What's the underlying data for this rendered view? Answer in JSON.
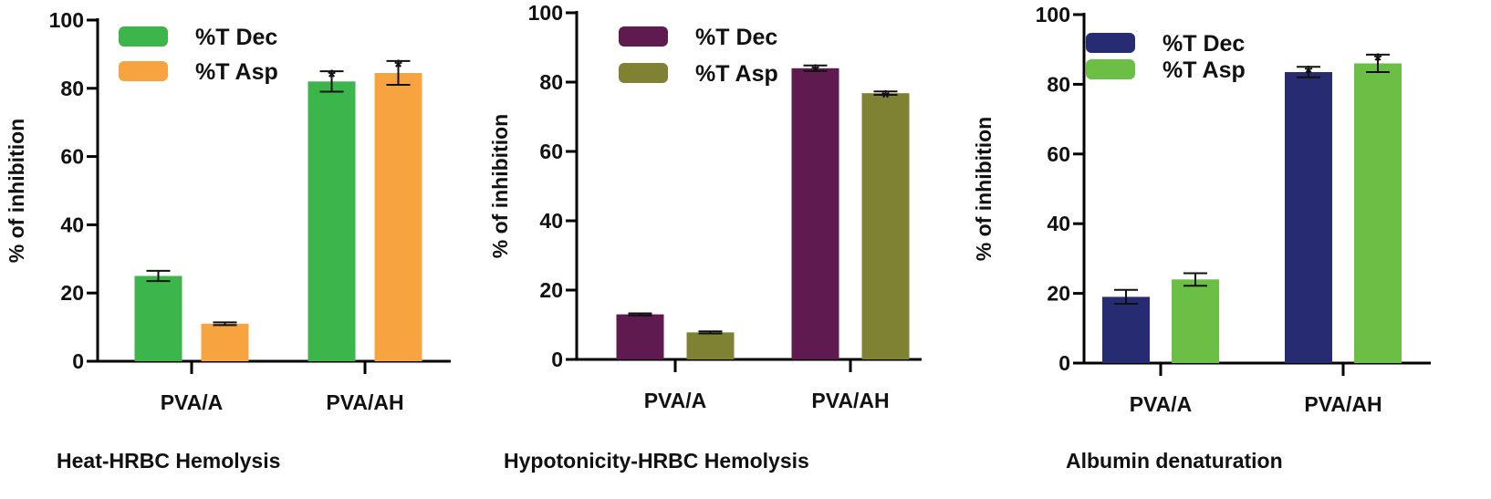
{
  "chart_data": [
    {
      "type": "bar",
      "caption": "Heat-HRBC Hemolysis",
      "ylabel": "% of inhibition",
      "ylim": [
        0,
        100
      ],
      "yticks": [
        "0",
        "20",
        "40",
        "60",
        "80",
        "100"
      ],
      "categories": [
        "PVA/A",
        "PVA/AH"
      ],
      "legend_position": "top-left",
      "series": [
        {
          "name": "%T Dec",
          "color": "#3cb54a",
          "values": [
            25,
            82
          ],
          "errors": [
            1.5,
            3
          ],
          "significance": [
            "",
            "*"
          ]
        },
        {
          "name": "%T Asp",
          "color": "#f7a440",
          "values": [
            11,
            84.5
          ],
          "errors": [
            0.4,
            3.5
          ],
          "significance": [
            "",
            "*"
          ]
        }
      ]
    },
    {
      "type": "bar",
      "caption": "Hypotonicity-HRBC Hemolysis",
      "ylabel": "% of inhibition",
      "ylim": [
        0,
        100
      ],
      "yticks": [
        "0",
        "20",
        "40",
        "60",
        "80",
        "100"
      ],
      "categories": [
        "PVA/A",
        "PVA/AH"
      ],
      "legend_position": "top-left",
      "series": [
        {
          "name": "%T Dec",
          "color": "#5f1a4f",
          "values": [
            13,
            84
          ],
          "errors": [
            0.3,
            0.8
          ],
          "significance": [
            "",
            "*"
          ]
        },
        {
          "name": "%T Asp",
          "color": "#7e8232",
          "values": [
            7.8,
            76.8
          ],
          "errors": [
            0.3,
            0.5
          ],
          "significance": [
            "",
            "*"
          ]
        }
      ]
    },
    {
      "type": "bar",
      "caption": "Albumin denaturation",
      "ylabel": "% of inhibition",
      "ylim": [
        0,
        100
      ],
      "yticks": [
        "0",
        "20",
        "40",
        "60",
        "80",
        "100"
      ],
      "categories": [
        "PVA/A",
        "PVA/AH"
      ],
      "legend_position": "top-left",
      "series": [
        {
          "name": "%T Dec",
          "color": "#272b71",
          "values": [
            19,
            83.5
          ],
          "errors": [
            2,
            1.5
          ],
          "significance": [
            "",
            "*"
          ]
        },
        {
          "name": "%T Asp",
          "color": "#6cbf45",
          "values": [
            24,
            86
          ],
          "errors": [
            1.8,
            2.5
          ],
          "significance": [
            "",
            "*"
          ]
        }
      ]
    }
  ]
}
